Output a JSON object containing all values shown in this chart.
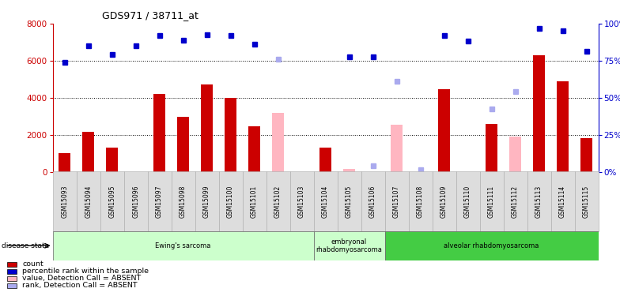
{
  "title": "GDS971 / 38711_at",
  "samples": [
    "GSM15093",
    "GSM15094",
    "GSM15095",
    "GSM15096",
    "GSM15097",
    "GSM15098",
    "GSM15099",
    "GSM15100",
    "GSM15101",
    "GSM15102",
    "GSM15103",
    "GSM15104",
    "GSM15105",
    "GSM15106",
    "GSM15107",
    "GSM15108",
    "GSM15109",
    "GSM15110",
    "GSM15111",
    "GSM15112",
    "GSM15113",
    "GSM15114",
    "GSM15115"
  ],
  "count_red": [
    1000,
    2150,
    1300,
    null,
    4200,
    2950,
    4700,
    4000,
    2450,
    null,
    null,
    1300,
    null,
    null,
    null,
    null,
    4450,
    null,
    2600,
    null,
    6300,
    4900,
    1800
  ],
  "value_pink": [
    null,
    null,
    null,
    null,
    null,
    null,
    null,
    null,
    null,
    3200,
    null,
    null,
    150,
    null,
    2550,
    null,
    null,
    null,
    null,
    1900,
    null,
    null,
    null
  ],
  "rank_blue": [
    5900,
    6800,
    6350,
    6800,
    7350,
    7100,
    7400,
    7350,
    6900,
    null,
    null,
    null,
    6200,
    6200,
    null,
    null,
    7350,
    7050,
    null,
    null,
    7750,
    7600,
    6500
  ],
  "rank_lightblue": [
    null,
    null,
    null,
    null,
    null,
    null,
    null,
    null,
    null,
    6100,
    null,
    null,
    null,
    300,
    4900,
    100,
    null,
    null,
    3400,
    4350,
    null,
    null,
    null
  ],
  "disease_groups": [
    {
      "label": "Ewing's sarcoma",
      "start": 0,
      "end": 10,
      "light": true
    },
    {
      "label": "embryonal\nrhabdomyosarcoma",
      "start": 11,
      "end": 13,
      "light": true
    },
    {
      "label": "alveolar rhabdomyosarcoma",
      "start": 14,
      "end": 22,
      "light": false
    }
  ],
  "ylim_left": [
    0,
    8000
  ],
  "ylim_right": [
    0,
    100
  ],
  "yticks_left": [
    0,
    2000,
    4000,
    6000,
    8000
  ],
  "yticks_right": [
    0,
    25,
    50,
    75,
    100
  ],
  "bar_width": 0.5,
  "red_color": "#CC0000",
  "pink_color": "#FFB6C1",
  "blue_color": "#0000CC",
  "lightblue_color": "#AAAAEE",
  "legend_items": [
    {
      "label": "count",
      "color": "#CC0000"
    },
    {
      "label": "percentile rank within the sample",
      "color": "#0000CC"
    },
    {
      "label": "value, Detection Call = ABSENT",
      "color": "#FFB6C1"
    },
    {
      "label": "rank, Detection Call = ABSENT",
      "color": "#AAAAEE"
    }
  ],
  "light_green": "#CCFFCC",
  "dark_green": "#44CC44",
  "cell_color": "#DDDDDD",
  "cell_edge": "#AAAAAA"
}
